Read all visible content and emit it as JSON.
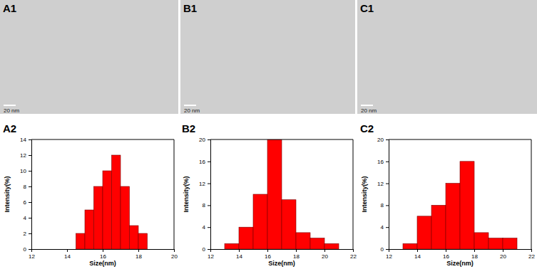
{
  "images": [
    {
      "label": "A1",
      "scale_bar": "20 nm"
    },
    {
      "label": "B1",
      "scale_bar": "20 nm"
    },
    {
      "label": "C1",
      "scale_bar": "20 nm"
    }
  ],
  "chart_data": [
    {
      "type": "histogram",
      "title": "A2",
      "x_label": "Size(nm)",
      "y_label": "Intensity(%)",
      "bins": [
        14.5,
        15,
        15.5,
        16,
        16.5,
        17,
        17.5,
        18,
        18.5
      ],
      "values": [
        2,
        5,
        8,
        10,
        12,
        8,
        3,
        2
      ],
      "color": "#ff0000",
      "xlim": [
        12,
        20
      ],
      "xticks": [
        12,
        14,
        16,
        18,
        20
      ],
      "ylim": [
        0,
        14
      ],
      "yticks": [
        0,
        2,
        4,
        6,
        8,
        10,
        12,
        14
      ]
    },
    {
      "type": "histogram",
      "title": "B2",
      "x_label": "Size(nm)",
      "y_label": "Intensity(%)",
      "bins": [
        13,
        14,
        15,
        16,
        17,
        18,
        19,
        20,
        21
      ],
      "values": [
        1,
        4,
        10,
        20,
        9,
        3,
        2,
        1
      ],
      "color": "#ff0000",
      "xlim": [
        12,
        22
      ],
      "xticks": [
        12,
        14,
        16,
        18,
        20,
        22
      ],
      "ylim": [
        0,
        20
      ],
      "yticks": [
        0,
        4,
        8,
        12,
        16,
        20
      ]
    },
    {
      "type": "histogram",
      "title": "C2",
      "x_label": "Size(nm)",
      "y_label": "Intensity(%)",
      "bins": [
        13,
        14,
        15,
        16,
        17,
        18,
        19,
        20,
        21
      ],
      "values": [
        1,
        6,
        8,
        12,
        16,
        3,
        2,
        2
      ],
      "color": "#ff0000",
      "xlim": [
        12,
        22
      ],
      "xticks": [
        12,
        14,
        16,
        18,
        20,
        22
      ],
      "ylim": [
        0,
        20
      ],
      "yticks": [
        0,
        4,
        8,
        12,
        16,
        20
      ]
    }
  ]
}
